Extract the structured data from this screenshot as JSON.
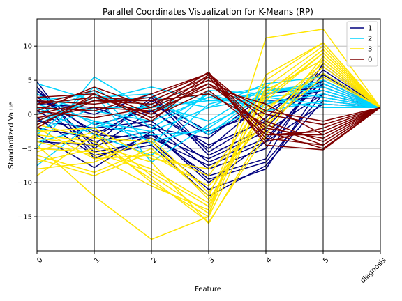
{
  "chart_data": {
    "type": "line",
    "subtype": "parallel-coordinates",
    "title": "Parallel Coordinates Visualization for K-Means (RP)",
    "xlabel": "Feature",
    "ylabel": "Standardized Value",
    "categories": [
      "0",
      "1",
      "2",
      "3",
      "4",
      "5",
      "diagnosis"
    ],
    "ylim": [
      -20,
      14
    ],
    "yticks": [
      -15,
      -10,
      -5,
      0,
      5,
      10
    ],
    "ytick_labels": [
      "−15",
      "−10",
      "−5",
      "0",
      "5",
      "10"
    ],
    "grid": "horizontal and vertical (vertical lines at each feature in black)",
    "legend": {
      "placement": "top-right",
      "entries": [
        {
          "label": "1",
          "color": "#00007f"
        },
        {
          "label": "2",
          "color": "#00d4ff"
        },
        {
          "label": "3",
          "color": "#ffe500"
        },
        {
          "label": "0",
          "color": "#7f0000"
        }
      ]
    },
    "series": [
      {
        "name": "1",
        "color": "#00007f",
        "lines": [
          [
            4.8,
            -6.5,
            -3.0,
            -9.0,
            -6.5,
            7.5,
            1.0
          ],
          [
            3.5,
            -4.5,
            2.5,
            -6.0,
            -2.0,
            6.5,
            1.0
          ],
          [
            2.0,
            -5.5,
            -4.0,
            -11.0,
            -8.0,
            4.5,
            1.0
          ],
          [
            1.0,
            -3.0,
            1.5,
            -3.0,
            1.5,
            3.5,
            1.0
          ],
          [
            -1.0,
            -2.0,
            -1.0,
            -7.0,
            -3.5,
            5.0,
            1.0
          ],
          [
            -3.0,
            -7.8,
            -2.5,
            -10.0,
            -4.0,
            5.8,
            1.0
          ],
          [
            3.0,
            -1.5,
            0.5,
            -5.0,
            2.0,
            2.5,
            1.0
          ],
          [
            0.5,
            -4.0,
            -2.5,
            -9.5,
            -7.0,
            3.0,
            1.0
          ],
          [
            -2.0,
            -3.5,
            2.0,
            -2.5,
            0.5,
            5.0,
            1.0
          ],
          [
            2.5,
            -2.5,
            -1.5,
            -8.0,
            -5.0,
            6.0,
            1.0
          ],
          [
            4.0,
            -5.0,
            0.5,
            -4.5,
            -1.0,
            4.5,
            1.0
          ],
          [
            -4.0,
            -4.5,
            -3.0,
            -6.5,
            -2.5,
            3.0,
            1.0
          ],
          [
            1.5,
            1.0,
            -2.0,
            -3.5,
            3.0,
            4.0,
            1.0
          ],
          [
            -0.5,
            -6.0,
            -4.5,
            -12.0,
            -7.5,
            2.0,
            1.0
          ],
          [
            2.0,
            0.0,
            3.0,
            -5.5,
            -0.5,
            7.0,
            1.0
          ],
          [
            3.5,
            -3.0,
            -3.5,
            -7.5,
            -4.0,
            1.5,
            1.0
          ]
        ]
      },
      {
        "name": "2",
        "color": "#00d4ff",
        "lines": [
          [
            -7.5,
            -1.0,
            -4.0,
            -2.0,
            3.5,
            4.5,
            1.0
          ],
          [
            -5.0,
            5.5,
            0.5,
            2.5,
            4.0,
            2.5,
            1.0
          ],
          [
            4.5,
            2.0,
            4.0,
            2.0,
            3.0,
            5.0,
            1.0
          ],
          [
            2.0,
            3.0,
            -7.0,
            -1.5,
            2.5,
            3.5,
            1.0
          ],
          [
            -3.0,
            4.0,
            -2.0,
            3.0,
            0.5,
            2.0,
            1.0
          ],
          [
            1.0,
            -3.0,
            -6.0,
            1.5,
            3.5,
            4.0,
            1.0
          ],
          [
            -1.0,
            2.0,
            2.5,
            1.0,
            4.5,
            5.5,
            1.0
          ],
          [
            3.0,
            -1.5,
            -3.0,
            -2.5,
            1.5,
            3.0,
            1.0
          ],
          [
            -2.5,
            1.0,
            1.0,
            2.0,
            2.0,
            1.0,
            1.0
          ],
          [
            0.0,
            3.5,
            -4.5,
            3.5,
            3.0,
            4.5,
            1.0
          ],
          [
            -4.0,
            -2.0,
            1.5,
            -1.0,
            4.0,
            2.5,
            1.0
          ],
          [
            2.5,
            0.5,
            -1.0,
            2.5,
            1.0,
            6.0,
            1.0
          ],
          [
            -1.5,
            2.5,
            3.0,
            -3.0,
            3.5,
            3.5,
            1.0
          ],
          [
            1.5,
            -1.0,
            -2.5,
            1.0,
            2.5,
            1.5,
            1.0
          ]
        ]
      },
      {
        "name": "3",
        "color": "#ffe500",
        "lines": [
          [
            -9.0,
            -3.0,
            -10.0,
            -15.0,
            11.2,
            12.5,
            1.0
          ],
          [
            -6.0,
            -8.5,
            -5.0,
            -12.0,
            5.8,
            10.5,
            1.0
          ],
          [
            -4.5,
            -12.0,
            -18.3,
            -15.0,
            2.0,
            9.0,
            1.0
          ],
          [
            -3.0,
            -4.0,
            -9.5,
            -15.8,
            -3.0,
            8.0,
            1.0
          ],
          [
            -7.0,
            -5.0,
            -8.0,
            -13.0,
            3.0,
            9.5,
            1.0
          ],
          [
            -2.0,
            -6.5,
            -6.0,
            -10.5,
            -1.0,
            7.0,
            1.0
          ],
          [
            -5.5,
            -2.5,
            -9.0,
            -14.5,
            4.0,
            10.0,
            1.0
          ],
          [
            -8.0,
            -7.0,
            -3.5,
            -11.5,
            1.0,
            6.0,
            1.0
          ],
          [
            -3.5,
            -4.5,
            -7.0,
            -16.0,
            -2.0,
            8.5,
            1.0
          ],
          [
            -6.5,
            -9.0,
            -5.5,
            -9.0,
            2.5,
            9.0,
            1.0
          ],
          [
            -1.5,
            -3.5,
            -4.0,
            -12.5,
            0.5,
            7.5,
            1.0
          ],
          [
            -4.0,
            -6.0,
            -10.5,
            -14.0,
            5.0,
            10.5,
            1.0
          ],
          [
            -2.5,
            -2.0,
            -6.5,
            -8.0,
            -1.5,
            5.5,
            1.0
          ],
          [
            -5.0,
            -5.5,
            -8.5,
            -13.5,
            3.5,
            8.0,
            1.0
          ]
        ]
      },
      {
        "name": "0",
        "color": "#7f0000",
        "lines": [
          [
            0.5,
            4.0,
            1.0,
            6.2,
            -4.5,
            -5.2,
            1.0
          ],
          [
            -1.0,
            2.5,
            2.0,
            5.5,
            -3.5,
            -4.5,
            1.0
          ],
          [
            1.5,
            3.5,
            0.0,
            4.5,
            -2.0,
            -3.5,
            1.0
          ],
          [
            2.0,
            1.5,
            2.5,
            6.0,
            -1.0,
            -4.0,
            1.0
          ],
          [
            -2.0,
            3.0,
            -0.5,
            3.5,
            -3.0,
            -2.5,
            1.0
          ],
          [
            0.0,
            2.0,
            1.5,
            5.0,
            0.5,
            -1.0,
            1.0
          ],
          [
            1.0,
            0.5,
            3.0,
            6.0,
            -2.5,
            -5.0,
            1.0
          ],
          [
            -0.5,
            1.0,
            0.5,
            4.0,
            1.5,
            -3.0,
            1.0
          ],
          [
            2.5,
            3.0,
            -1.0,
            5.5,
            -4.0,
            -2.0,
            1.0
          ],
          [
            -1.5,
            2.0,
            2.0,
            3.0,
            -1.5,
            -4.5,
            1.0
          ],
          [
            0.5,
            -0.5,
            1.0,
            4.5,
            0.0,
            -1.5,
            1.0
          ],
          [
            1.5,
            2.5,
            0.0,
            5.8,
            -3.0,
            -3.0,
            1.0
          ]
        ]
      }
    ]
  }
}
